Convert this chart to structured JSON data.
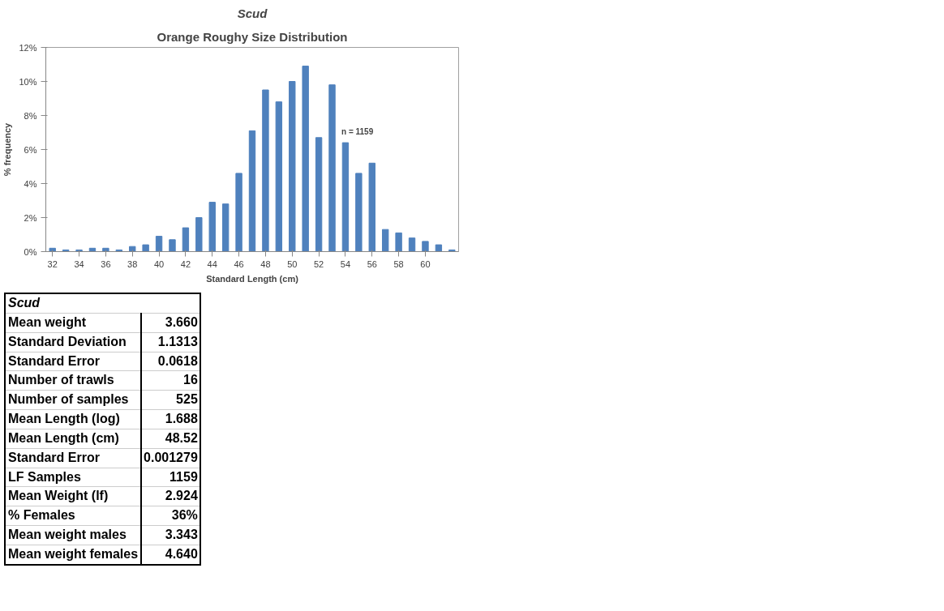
{
  "chart_data": {
    "type": "bar",
    "title": "Scud",
    "subtitle": "Orange Roughy Size Distribution",
    "xlabel": "Standard Length (cm)",
    "ylabel": "% frequency",
    "categories": [
      "32",
      null,
      "34",
      null,
      "36",
      null,
      "38",
      null,
      "40",
      null,
      "42",
      null,
      "44",
      null,
      "46",
      null,
      "48",
      null,
      "50",
      null,
      "52",
      null,
      "54",
      null,
      "56",
      null,
      "58",
      null,
      "60",
      null,
      null
    ],
    "values": [
      0.2,
      0.1,
      0.1,
      0.2,
      0.2,
      0.1,
      0.3,
      0.4,
      0.9,
      0.7,
      1.4,
      2.0,
      2.9,
      2.8,
      4.6,
      7.1,
      9.5,
      8.8,
      10.0,
      10.9,
      6.7,
      9.8,
      6.4,
      4.6,
      5.2,
      1.3,
      1.1,
      0.8,
      0.6,
      0.4,
      0.1
    ],
    "color": "#4f81bd",
    "ylim": [
      0,
      12
    ],
    "yticks": [
      {
        "value": 0,
        "label": "0%"
      },
      {
        "value": 2,
        "label": "2%"
      },
      {
        "value": 4,
        "label": "4%"
      },
      {
        "value": 6,
        "label": "6%"
      },
      {
        "value": 8,
        "label": "8%"
      },
      {
        "value": 10,
        "label": "10%"
      },
      {
        "value": 12,
        "label": "12%"
      }
    ],
    "grid": false,
    "annotations": [
      {
        "text": "n = 1159",
        "x": "54",
        "y": 6.6
      },
      "Scud",
      "Mean weight 3.660",
      "Standard Deviation 1.1313",
      "Standard Error 0.0618",
      "Number of trawls 16",
      "Number of samples 525",
      "Mean Length (log) 1.688",
      "Mean Length (cm) 48.52",
      "Standard Error 0.001279",
      "LF Samples 1159",
      "Mean Weight (lf) 2.924",
      "% Females 36%",
      "Mean weight males 3.343",
      "Mean weight females 4.640"
    ]
  }
}
